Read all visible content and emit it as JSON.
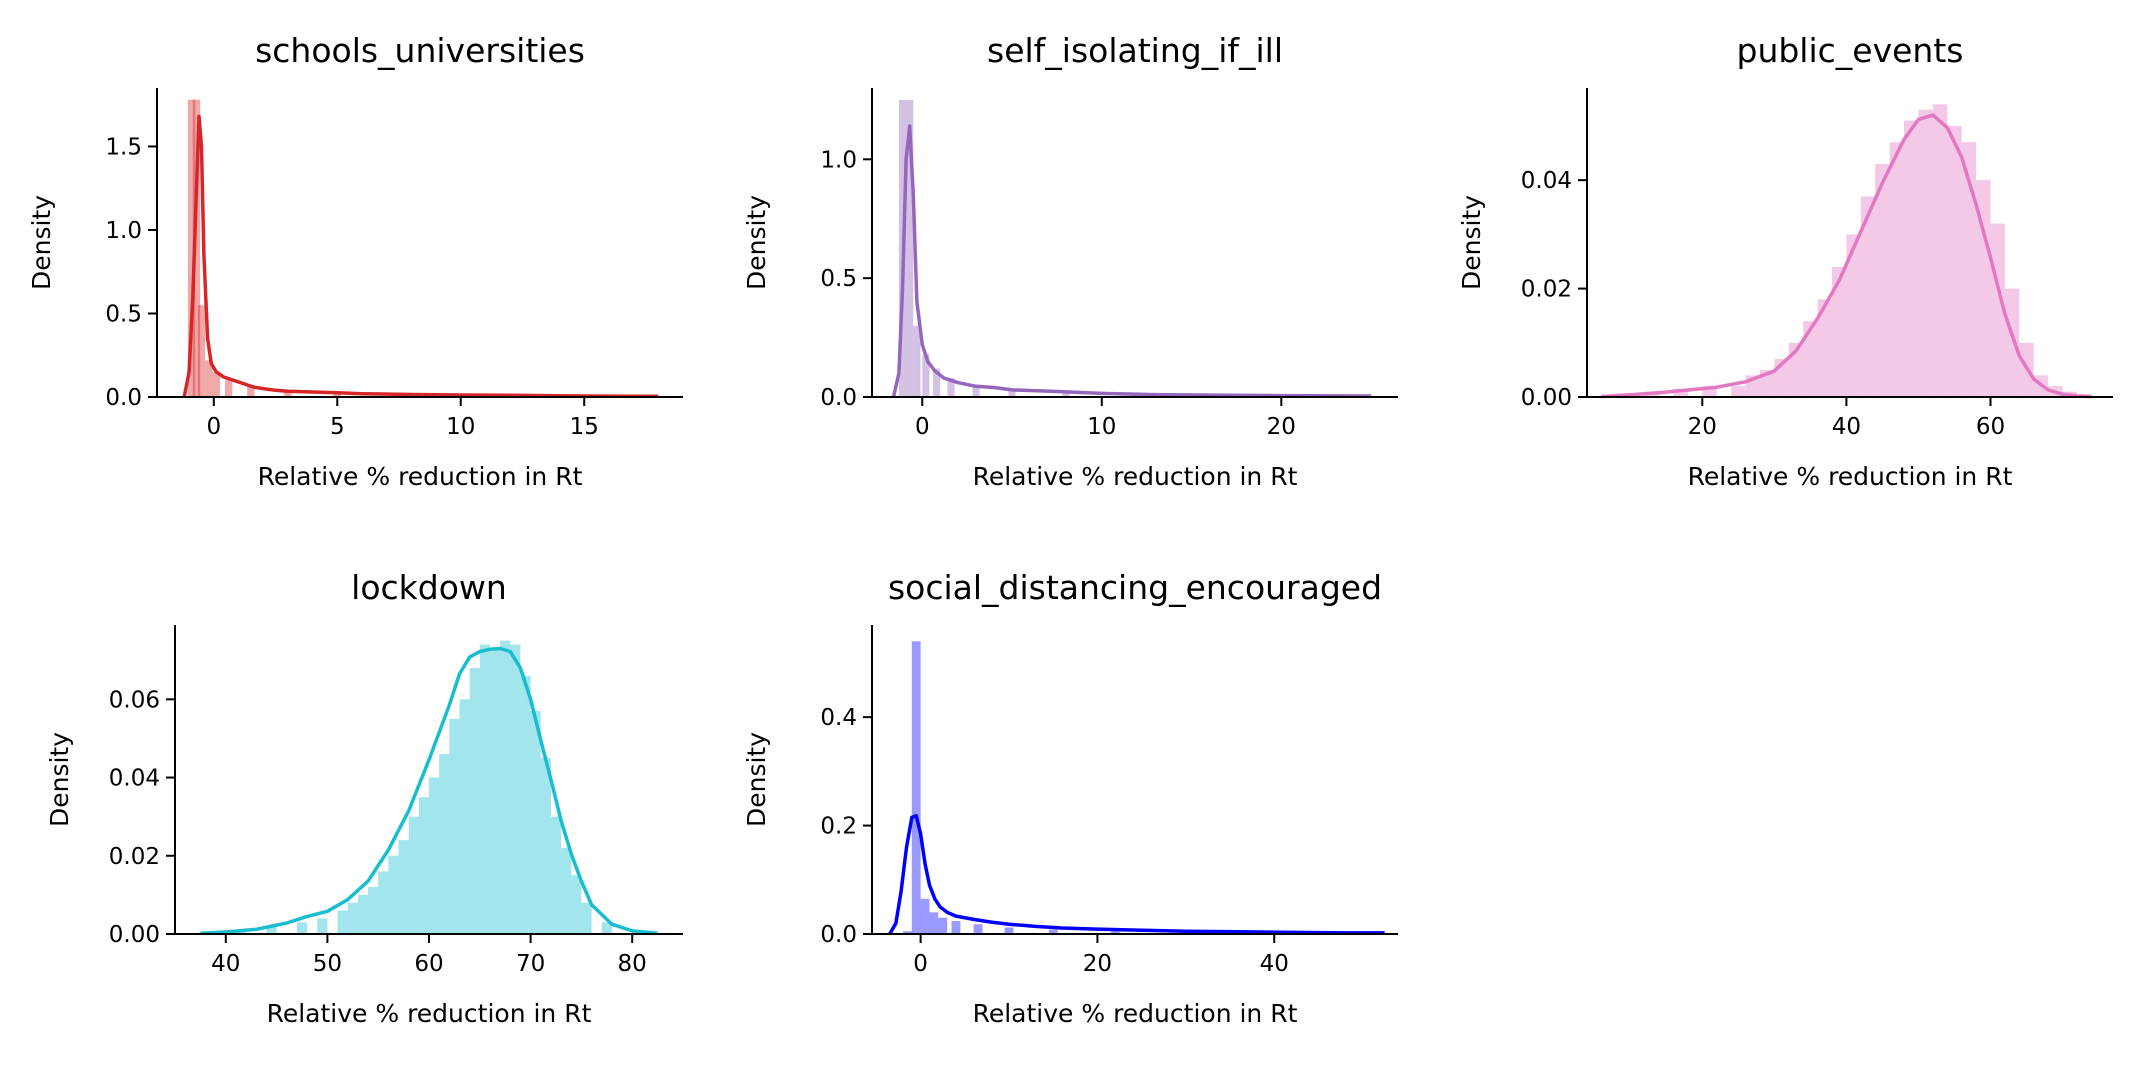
{
  "chart_data": [
    {
      "type": "bar",
      "title": "schools_universities",
      "xlabel": "Relative % reduction in Rt",
      "ylabel": "Density",
      "color": "#d62728",
      "xlim": [
        -2.3,
        19.0
      ],
      "ylim": [
        0,
        1.85
      ],
      "xticks": [
        0,
        5,
        10,
        15
      ],
      "yticks": [
        0.0,
        0.5,
        1.0,
        1.5
      ],
      "tick_decimals": 1,
      "hist": {
        "x": [
          -0.9,
          -0.7,
          -0.5,
          -0.2,
          0.1,
          0.6,
          1.5,
          3.0,
          5.0,
          8.0,
          12.0,
          16.0
        ],
        "values": [
          1.78,
          1.78,
          0.55,
          0.22,
          0.15,
          0.1,
          0.06,
          0.03,
          0.02,
          0.01,
          0.008,
          0.005
        ],
        "width": 0.3
      },
      "kde": {
        "x": [
          -1.2,
          -1.0,
          -0.85,
          -0.7,
          -0.6,
          -0.5,
          -0.4,
          -0.25,
          -0.1,
          0.1,
          0.4,
          0.8,
          1.2,
          1.6,
          2.0,
          2.5,
          3.0,
          4.0,
          5.0,
          6.0,
          8.0,
          10.0,
          12.0,
          15.0,
          18.0
        ],
        "y": [
          0.0,
          0.15,
          0.6,
          1.25,
          1.68,
          1.5,
          0.85,
          0.35,
          0.2,
          0.15,
          0.12,
          0.1,
          0.08,
          0.06,
          0.05,
          0.04,
          0.035,
          0.03,
          0.025,
          0.02,
          0.015,
          0.012,
          0.01,
          0.006,
          0.004
        ]
      }
    },
    {
      "type": "bar",
      "title": "self_isolating_if_ill",
      "xlabel": "Relative % reduction in Rt",
      "ylabel": "Density",
      "color": "#9467bd",
      "xlim": [
        -2.8,
        26.5
      ],
      "ylim": [
        0,
        1.3
      ],
      "xticks": [
        0,
        10,
        20
      ],
      "yticks": [
        0.0,
        0.5,
        1.0
      ],
      "tick_decimals": 1,
      "hist": {
        "x": [
          -1.1,
          -0.7,
          -0.3,
          0.2,
          0.8,
          1.6,
          3.0,
          5.0,
          8.0,
          12.0,
          16.0,
          20.0,
          24.0
        ],
        "values": [
          1.25,
          1.25,
          0.3,
          0.18,
          0.12,
          0.08,
          0.05,
          0.03,
          0.02,
          0.015,
          0.01,
          0.008,
          0.005
        ],
        "width": 0.4
      },
      "kde": {
        "x": [
          -1.6,
          -1.3,
          -1.1,
          -0.9,
          -0.7,
          -0.5,
          -0.3,
          0.0,
          0.3,
          0.7,
          1.2,
          2.0,
          3.0,
          4.0,
          5.0,
          7.0,
          10.0,
          13.0,
          16.0,
          20.0,
          25.0
        ],
        "y": [
          0.0,
          0.1,
          0.45,
          1.0,
          1.14,
          0.85,
          0.4,
          0.22,
          0.15,
          0.11,
          0.08,
          0.06,
          0.045,
          0.04,
          0.03,
          0.025,
          0.015,
          0.01,
          0.008,
          0.006,
          0.004
        ]
      }
    },
    {
      "type": "bar",
      "title": "public_events",
      "xlabel": "Relative % reduction in Rt",
      "ylabel": "Density",
      "color": "#e377c2",
      "xlim": [
        4.0,
        77.0
      ],
      "ylim": [
        0,
        0.057
      ],
      "xticks": [
        20,
        40,
        60
      ],
      "yticks": [
        0.0,
        0.02,
        0.04
      ],
      "tick_decimals": 2,
      "hist": {
        "x": [
          9,
          13,
          17,
          21,
          25,
          27,
          29,
          31,
          33,
          35,
          37,
          39,
          41,
          43,
          45,
          47,
          49,
          51,
          53,
          55,
          57,
          59,
          61,
          63,
          65,
          67,
          69,
          71,
          73
        ],
        "values": [
          0.0005,
          0.001,
          0.0015,
          0.002,
          0.002,
          0.004,
          0.005,
          0.007,
          0.01,
          0.014,
          0.018,
          0.024,
          0.03,
          0.037,
          0.043,
          0.047,
          0.051,
          0.053,
          0.054,
          0.05,
          0.047,
          0.04,
          0.032,
          0.02,
          0.01,
          0.004,
          0.002,
          0.001,
          0.0005
        ],
        "width": 2.0
      },
      "kde": {
        "x": [
          6,
          10,
          14,
          18,
          22,
          26,
          30,
          33,
          36,
          39,
          42,
          45,
          48,
          50,
          52,
          54,
          56,
          58,
          60,
          62,
          64,
          66,
          68,
          70,
          72,
          74
        ],
        "y": [
          0.0001,
          0.0004,
          0.0008,
          0.0013,
          0.0018,
          0.0028,
          0.0048,
          0.0085,
          0.0145,
          0.0215,
          0.0305,
          0.0395,
          0.0475,
          0.0512,
          0.052,
          0.0497,
          0.0442,
          0.0355,
          0.0257,
          0.0153,
          0.0076,
          0.0033,
          0.0013,
          0.0005,
          0.0002,
          0.0001
        ]
      }
    },
    {
      "type": "bar",
      "title": "lockdown",
      "xlabel": "Relative % reduction in Rt",
      "ylabel": "Density",
      "color": "#17becf",
      "xlim": [
        35.0,
        85.0
      ],
      "ylim": [
        0,
        0.079
      ],
      "xticks": [
        40,
        50,
        60,
        70,
        80
      ],
      "yticks": [
        0.0,
        0.02,
        0.04,
        0.06
      ],
      "tick_decimals": 2,
      "hist": {
        "x": [
          38.5,
          41.5,
          44.5,
          47.5,
          49.5,
          51.5,
          52.5,
          53.5,
          54.5,
          55.5,
          56.5,
          57.5,
          58.5,
          59.5,
          60.5,
          61.5,
          62.5,
          63.5,
          64.5,
          65.5,
          66.5,
          67.5,
          68.5,
          69.5,
          70.5,
          71.5,
          72.5,
          73.5,
          74.5,
          75.5,
          77.5,
          80.5
        ],
        "values": [
          0.0003,
          0.001,
          0.002,
          0.003,
          0.004,
          0.006,
          0.008,
          0.01,
          0.012,
          0.016,
          0.02,
          0.024,
          0.03,
          0.035,
          0.04,
          0.046,
          0.055,
          0.06,
          0.068,
          0.074,
          0.073,
          0.075,
          0.074,
          0.066,
          0.057,
          0.045,
          0.03,
          0.022,
          0.015,
          0.008,
          0.003,
          0.0005
        ],
        "width": 1.0
      },
      "kde": {
        "x": [
          37.5,
          40,
          43,
          46,
          48,
          50,
          52,
          54,
          56,
          58,
          60,
          62,
          63,
          64,
          65,
          66,
          67,
          68,
          69,
          70,
          71,
          72,
          73,
          74,
          75,
          76,
          78,
          80,
          82.5
        ],
        "y": [
          0.0002,
          0.0005,
          0.0012,
          0.0028,
          0.0045,
          0.0058,
          0.0088,
          0.0135,
          0.0215,
          0.0315,
          0.0445,
          0.0585,
          0.0665,
          0.0708,
          0.0722,
          0.0728,
          0.073,
          0.0722,
          0.068,
          0.06,
          0.0495,
          0.0395,
          0.029,
          0.0205,
          0.0135,
          0.0075,
          0.0025,
          0.0008,
          0.0002
        ]
      }
    },
    {
      "type": "bar",
      "title": "social_distancing_encouraged",
      "xlabel": "Relative % reduction in Rt",
      "ylabel": "Density",
      "color": "#0000ff",
      "xlim": [
        -5.5,
        54.0
      ],
      "ylim": [
        0,
        0.57
      ],
      "xticks": [
        0,
        20,
        40
      ],
      "yticks": [
        0.0,
        0.2,
        0.4
      ],
      "tick_decimals": 1,
      "hist": {
        "x": [
          -1.5,
          -0.5,
          0.5,
          1.5,
          2.5,
          4.0,
          6.5,
          10.0,
          15.0,
          22.0,
          30.0,
          38.0,
          46.0
        ],
        "values": [
          0.005,
          0.54,
          0.065,
          0.04,
          0.03,
          0.024,
          0.018,
          0.012,
          0.008,
          0.005,
          0.003,
          0.002,
          0.001
        ],
        "width": 1.0
      },
      "kde": {
        "x": [
          -3.5,
          -2.8,
          -2.2,
          -1.6,
          -1.0,
          -0.5,
          0.0,
          0.5,
          1.0,
          1.6,
          2.2,
          3.0,
          4.0,
          6.0,
          8.0,
          10.0,
          13.0,
          16.0,
          20.0,
          25.0,
          30.0,
          36.0,
          42.0,
          48.0,
          52.5
        ],
        "y": [
          0.0,
          0.02,
          0.08,
          0.16,
          0.215,
          0.218,
          0.185,
          0.13,
          0.09,
          0.065,
          0.05,
          0.04,
          0.033,
          0.027,
          0.022,
          0.018,
          0.014,
          0.011,
          0.009,
          0.007,
          0.005,
          0.004,
          0.003,
          0.002,
          0.002
        ]
      }
    }
  ]
}
